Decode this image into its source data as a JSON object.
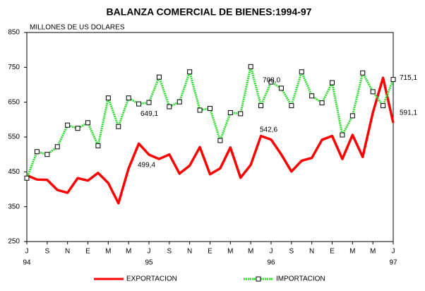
{
  "chart_data": {
    "type": "line",
    "title": "BALANZA COMERCIAL DE BIENES:1994-97",
    "y_label": "MILLONES DE US DOLARES",
    "categories": [
      "J",
      null,
      "S",
      null,
      "N",
      null,
      "E",
      null,
      "M",
      null,
      "M",
      null,
      "J",
      null,
      "S",
      null,
      "N",
      null,
      "E",
      null,
      "M",
      null,
      "M",
      null,
      "J",
      null,
      "S",
      null,
      "N",
      null,
      "E",
      null,
      "M",
      null,
      "M",
      null,
      "J"
    ],
    "year_labels": [
      "94",
      null,
      null,
      null,
      null,
      null,
      null,
      null,
      null,
      null,
      null,
      null,
      "95",
      null,
      null,
      null,
      null,
      null,
      null,
      null,
      null,
      null,
      null,
      null,
      "96",
      null,
      null,
      null,
      null,
      null,
      null,
      null,
      null,
      null,
      null,
      null,
      "97"
    ],
    "ylim": [
      250,
      850
    ],
    "yticks": [
      250,
      350,
      450,
      550,
      650,
      750,
      850
    ],
    "grid": false,
    "legend": "bottom",
    "series": [
      {
        "name": "EXPORTACION",
        "color": "#ff0000",
        "values": [
          440,
          428,
          427,
          398,
          390,
          432,
          425,
          447,
          418,
          360,
          460,
          531,
          499.4,
          487,
          500,
          445,
          468,
          521,
          443,
          460,
          520,
          433,
          470,
          553,
          542.6,
          500,
          451,
          482,
          490,
          542,
          553,
          487,
          556,
          493,
          620,
          720,
          591.1
        ],
        "value_labels": [
          null,
          null,
          null,
          null,
          null,
          null,
          null,
          null,
          null,
          null,
          null,
          null,
          "499,4",
          null,
          null,
          null,
          null,
          null,
          null,
          null,
          null,
          null,
          null,
          null,
          "542,6",
          null,
          null,
          null,
          null,
          null,
          null,
          null,
          null,
          null,
          null,
          null,
          "591,1"
        ]
      },
      {
        "name": "IMPORTACION",
        "color": "#33dd33",
        "values": [
          432,
          508,
          500,
          522,
          584,
          575,
          591,
          525,
          662,
          580,
          662,
          645,
          649.1,
          722,
          637,
          651,
          737,
          627,
          632,
          540,
          620,
          617,
          752,
          640,
          708.0,
          690,
          640,
          737,
          668,
          648,
          706,
          556,
          611,
          734,
          680,
          640,
          715.1
        ],
        "value_labels": [
          null,
          null,
          null,
          null,
          null,
          null,
          null,
          null,
          null,
          null,
          null,
          null,
          "649,1",
          null,
          null,
          null,
          null,
          null,
          null,
          null,
          null,
          null,
          null,
          null,
          "708,0",
          null,
          null,
          null,
          null,
          null,
          null,
          null,
          null,
          null,
          null,
          null,
          "715,1"
        ]
      }
    ]
  }
}
